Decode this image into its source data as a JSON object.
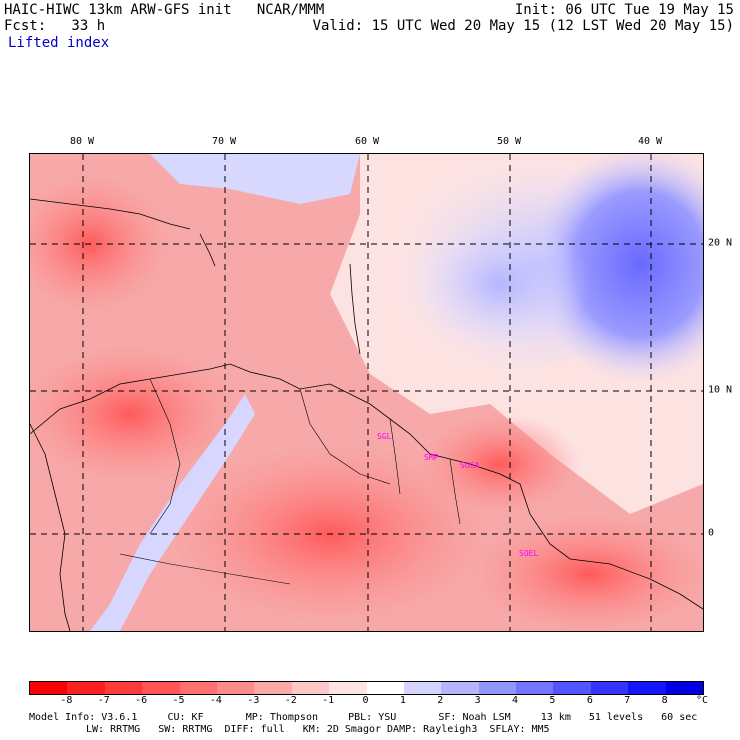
{
  "header": {
    "title": "HAIC-HIWC 13km ARW-GFS init   NCAR/MMM",
    "forecast": "Fcst:   33 h",
    "field": "Lifted index",
    "init": "Init: 06 UTC Tue 19 May 15",
    "valid": "Valid: 15 UTC Wed 20 May 15 (12 LST Wed 20 May 15)"
  },
  "map": {
    "lon_labels": [
      "80 W",
      "70 W",
      "60 W",
      "50 W",
      "40 W"
    ],
    "lat_labels": [
      "20 N",
      "10 N",
      "0"
    ],
    "stations": [
      "SGL",
      "SMP",
      "SOCA",
      "SOEL"
    ]
  },
  "colorbar": {
    "labels": [
      "-8",
      "-7",
      "-6",
      "-5",
      "-4",
      "-3",
      "-2",
      "-1",
      "0",
      "1",
      "2",
      "3",
      "4",
      "5",
      "6",
      "7",
      "8",
      "°C"
    ],
    "colors": [
      "#ff0000",
      "#ff2020",
      "#ff3a3a",
      "#ff5555",
      "#ff7070",
      "#ff8c8c",
      "#ffa8a8",
      "#ffc8c8",
      "#ffe4e4",
      "#ffffff",
      "#d4d4ff",
      "#b4b4ff",
      "#9494ff",
      "#7474ff",
      "#5454ff",
      "#3434ff",
      "#1414ff",
      "#0000e0"
    ]
  },
  "footer": {
    "line1": "Model Info: V3.6.1     CU: KF       MP: Thompson     PBL: YSU       SF: Noah LSM     13 km   51 levels   60 sec",
    "line2": "LW: RRTMG   SW: RRTMG  DIFF: full   KM: 2D Smagor DAMP: Rayleigh3  SFLAY: MM5"
  }
}
